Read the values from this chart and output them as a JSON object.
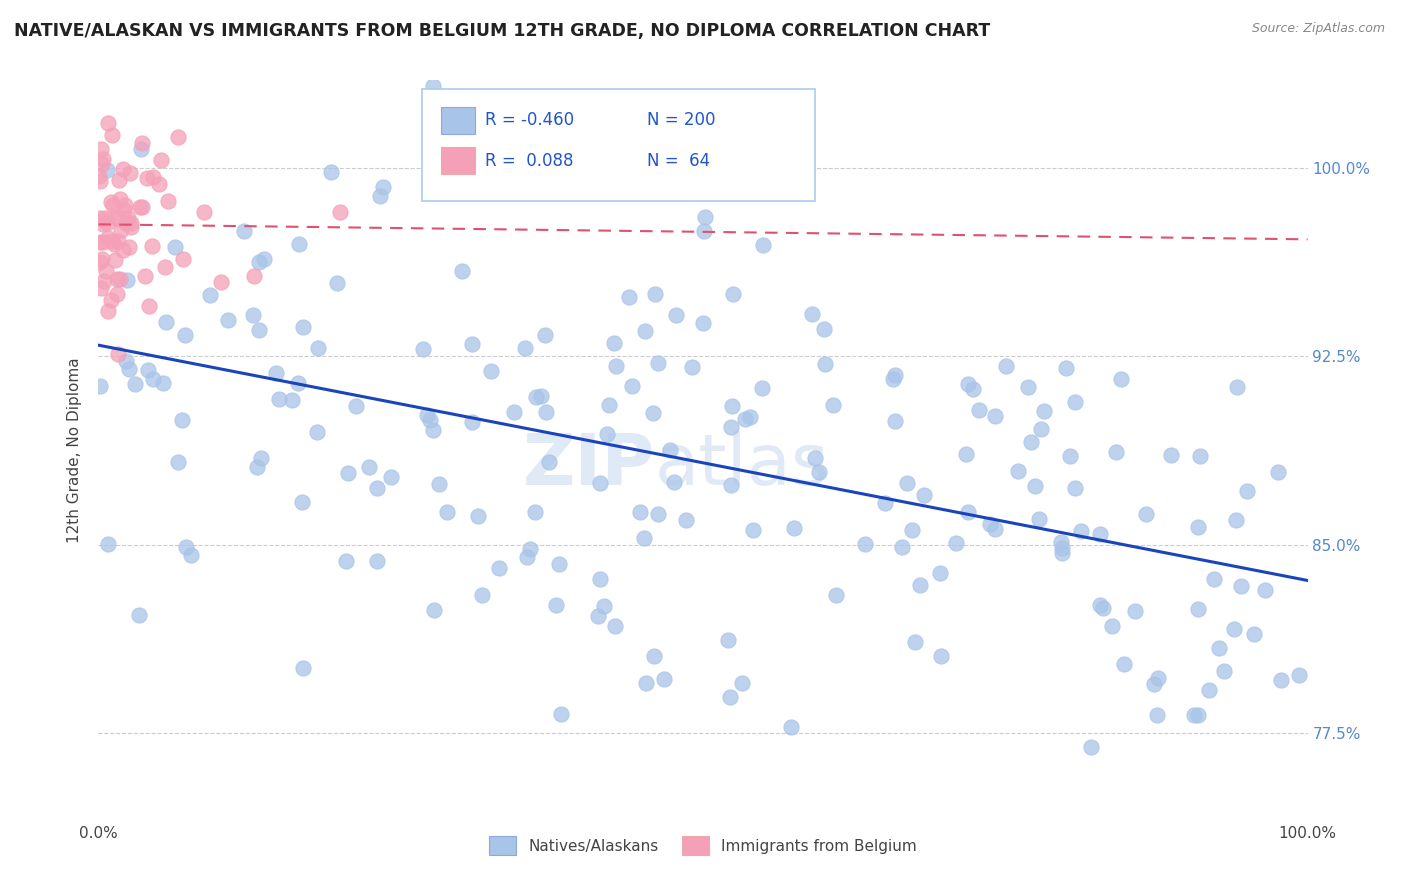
{
  "title": "NATIVE/ALASKAN VS IMMIGRANTS FROM BELGIUM 12TH GRADE, NO DIPLOMA CORRELATION CHART",
  "source": "Source: ZipAtlas.com",
  "y_axis_label": "12th Grade, No Diploma",
  "legend_label1": "Natives/Alaskans",
  "legend_label2": "Immigrants from Belgium",
  "R1": -0.46,
  "N1": 200,
  "R2": 0.088,
  "N2": 64,
  "color1": "#a8c4e8",
  "color2": "#f4a0b8",
  "trend1_color": "#1a44bb",
  "trend2_color": "#e05070",
  "background_color": "#ffffff",
  "watermark_zip": "ZIP",
  "watermark_atlas": "atlas",
  "xmin": 0.0,
  "xmax": 100.0,
  "ymin": 74.0,
  "ymax": 103.5,
  "y_tick_vals": [
    77.5,
    85.0,
    92.5,
    100.0
  ],
  "y_tick_labels": [
    "77.5%",
    "85.0%",
    "92.5%",
    "100.0%"
  ]
}
